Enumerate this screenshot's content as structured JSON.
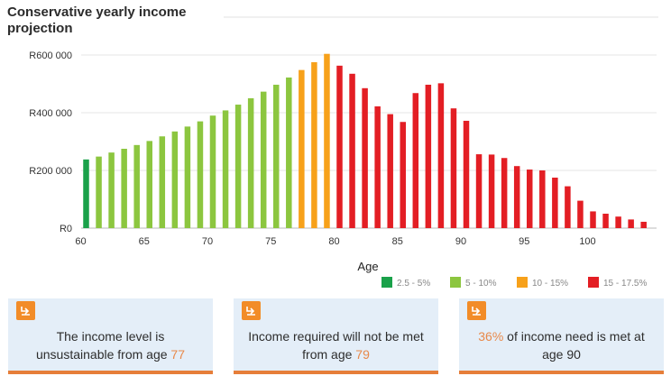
{
  "chart_data": {
    "type": "bar",
    "title": "Conservative yearly income projection",
    "xlabel": "Age",
    "ylabel": "",
    "ylim": [
      0,
      600000
    ],
    "yticks": [
      0,
      200000,
      400000,
      600000
    ],
    "ytick_labels": [
      "R0",
      "R200 000",
      "R400 000",
      "R600 000"
    ],
    "xticks": [
      60,
      65,
      70,
      75,
      80,
      85,
      90,
      95,
      100
    ],
    "xtick_labels": [
      "60",
      "65",
      "70",
      "75",
      "80",
      "85",
      "90",
      "95",
      "100"
    ],
    "grid": "horizontal",
    "legend_position": "bottom-right",
    "ages": [
      60,
      61,
      62,
      63,
      64,
      65,
      66,
      67,
      68,
      69,
      70,
      71,
      72,
      73,
      74,
      75,
      76,
      77,
      78,
      79,
      80,
      81,
      82,
      83,
      84,
      85,
      86,
      87,
      88,
      89,
      90,
      91,
      92,
      93,
      94,
      95,
      96,
      97,
      98,
      99,
      100,
      101,
      102,
      103,
      104
    ],
    "values": [
      238000,
      248000,
      262000,
      275000,
      288000,
      302000,
      318000,
      335000,
      352000,
      370000,
      390000,
      408000,
      428000,
      450000,
      473000,
      497000,
      522000,
      548000,
      575000,
      604000,
      563000,
      535000,
      485000,
      422000,
      395000,
      368000,
      468000,
      497000,
      502000,
      415000,
      372000,
      256000,
      255000,
      243000,
      215000,
      203000,
      200000,
      175000,
      145000,
      95000,
      58000,
      50000,
      40000,
      30000,
      22000
    ],
    "bands": [
      "2.5 - 5%",
      "5 - 10%",
      "5 - 10%",
      "5 - 10%",
      "5 - 10%",
      "5 - 10%",
      "5 - 10%",
      "5 - 10%",
      "5 - 10%",
      "5 - 10%",
      "5 - 10%",
      "5 - 10%",
      "5 - 10%",
      "5 - 10%",
      "5 - 10%",
      "5 - 10%",
      "5 - 10%",
      "10 - 15%",
      "10 - 15%",
      "10 - 15%",
      "15 - 17.5%",
      "15 - 17.5%",
      "15 - 17.5%",
      "15 - 17.5%",
      "15 - 17.5%",
      "15 - 17.5%",
      "15 - 17.5%",
      "15 - 17.5%",
      "15 - 17.5%",
      "15 - 17.5%",
      "15 - 17.5%",
      "15 - 17.5%",
      "15 - 17.5%",
      "15 - 17.5%",
      "15 - 17.5%",
      "15 - 17.5%",
      "15 - 17.5%",
      "15 - 17.5%",
      "15 - 17.5%",
      "15 - 17.5%",
      "15 - 17.5%",
      "15 - 17.5%",
      "15 - 17.5%",
      "15 - 17.5%",
      "15 - 17.5%"
    ],
    "legend": [
      {
        "label": "2.5 - 5%",
        "color": "#1aa14a"
      },
      {
        "label": "5 - 10%",
        "color": "#8cc63f"
      },
      {
        "label": "10 - 15%",
        "color": "#f7a11a"
      },
      {
        "label": "15 - 17.5%",
        "color": "#e31e24"
      }
    ]
  },
  "cards": [
    {
      "icon": "orange-arrow-icon",
      "text_before": "The income level is unsustainable from age ",
      "highlight": "77",
      "text_after": ""
    },
    {
      "icon": "orange-arrow-icon",
      "text_before": "Income required will not be met from age ",
      "highlight": "79",
      "text_after": ""
    },
    {
      "icon": "orange-arrow-icon",
      "text_before": "",
      "highlight": "36%",
      "text_after": " of income need is met at age 90"
    }
  ],
  "colors": {
    "accent": "#f28c28",
    "card_background": "#e4eef8",
    "highlight_text": "#e8894a"
  }
}
